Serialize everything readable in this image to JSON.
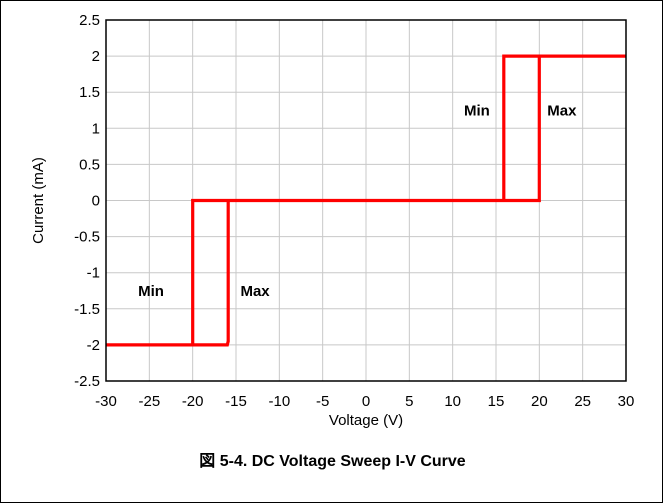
{
  "caption": "図 5-4. DC Voltage Sweep I-V Curve",
  "chart_data": {
    "type": "line",
    "title": "",
    "xlabel": "Voltage (V)",
    "ylabel": "Current (mA)",
    "xlim": [
      -30,
      30
    ],
    "ylim": [
      -2.5,
      2.5
    ],
    "x_ticks": [
      -30,
      -25,
      -20,
      -15,
      -10,
      -5,
      0,
      5,
      10,
      15,
      20,
      25,
      30
    ],
    "y_ticks": [
      -2.5,
      -2,
      -1.5,
      -1,
      -0.5,
      0,
      0.5,
      1,
      1.5,
      2,
      2.5
    ],
    "grid": true,
    "series": [
      {
        "color": "#ff0000",
        "points": [
          [
            -30,
            -2
          ],
          [
            -20,
            -2
          ],
          [
            -20,
            0
          ],
          [
            -15.9,
            0
          ],
          [
            -15.9,
            -1.95
          ],
          [
            -16,
            -2
          ],
          [
            -20,
            -2
          ],
          [
            -20,
            0
          ],
          [
            15.9,
            0
          ],
          [
            15.9,
            2
          ],
          [
            30,
            2
          ],
          [
            20,
            2
          ],
          [
            20,
            0
          ],
          [
            15.9,
            0
          ]
        ]
      }
    ],
    "annotations": [
      {
        "text": "Min",
        "x": -24.8,
        "y": -1.25
      },
      {
        "text": "Max",
        "x": -12.8,
        "y": -1.25
      },
      {
        "text": "Min",
        "x": 12.8,
        "y": 1.25
      },
      {
        "text": "Max",
        "x": 22.6,
        "y": 1.25
      }
    ]
  }
}
